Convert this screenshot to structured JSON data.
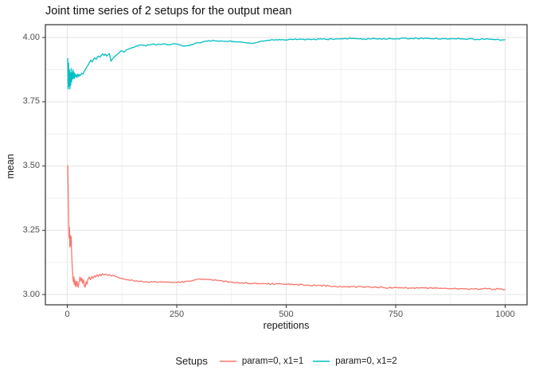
{
  "style": {
    "background": "#ffffff",
    "grid_major": "#e4e4e4",
    "grid_minor": "#f0f0f0",
    "panel_border": "#2f2f2f",
    "tick_mark": "#333333",
    "tick_label_color": "#4d4d4d",
    "text_color": "#1a1a1a"
  },
  "chart_data": {
    "type": "line",
    "title": "Joint time series of 2 setups for the output mean",
    "xlabel": "repetitions",
    "ylabel": "mean",
    "xlim": [
      -50,
      1050
    ],
    "ylim": [
      2.96,
      4.05
    ],
    "grid": true,
    "xticks": {
      "values": [
        0,
        250,
        500,
        750,
        1000
      ],
      "labels": [
        "0",
        "250",
        "500",
        "750",
        "1000"
      ]
    },
    "yticks": {
      "values": [
        3.0,
        3.25,
        3.5,
        3.75,
        4.0
      ],
      "labels": [
        "3.00",
        "3.25",
        "3.50",
        "3.75",
        "4.00"
      ]
    },
    "xminor": [
      125,
      375,
      625,
      875
    ],
    "yminor": [
      3.125,
      3.375,
      3.625,
      3.875
    ],
    "legend": {
      "title": "Setups",
      "position": "bottom"
    },
    "series": [
      {
        "name": "param=0, x1=1",
        "color": "#F8766D",
        "jitter": 0.0028,
        "points": [
          [
            1,
            3.503
          ],
          [
            2,
            3.42
          ],
          [
            3,
            3.31
          ],
          [
            4,
            3.22
          ],
          [
            5,
            3.26
          ],
          [
            6,
            3.185
          ],
          [
            7,
            3.23
          ],
          [
            8,
            3.19
          ],
          [
            9,
            3.225
          ],
          [
            10,
            3.16
          ],
          [
            11,
            3.12
          ],
          [
            12,
            3.09
          ],
          [
            13,
            3.065
          ],
          [
            14,
            3.05
          ],
          [
            15,
            3.068
          ],
          [
            16,
            3.04
          ],
          [
            17,
            3.058
          ],
          [
            18,
            3.035
          ],
          [
            19,
            3.05
          ],
          [
            20,
            3.03
          ],
          [
            22,
            3.052
          ],
          [
            24,
            3.034
          ],
          [
            25,
            3.028
          ],
          [
            27,
            3.048
          ],
          [
            29,
            3.068
          ],
          [
            31,
            3.052
          ],
          [
            33,
            3.064
          ],
          [
            35,
            3.044
          ],
          [
            37,
            3.058
          ],
          [
            39,
            3.032
          ],
          [
            41,
            3.029
          ],
          [
            43,
            3.05
          ],
          [
            45,
            3.04
          ],
          [
            47,
            3.058
          ],
          [
            50,
            3.068
          ],
          [
            53,
            3.058
          ],
          [
            56,
            3.07
          ],
          [
            59,
            3.063
          ],
          [
            62,
            3.073
          ],
          [
            65,
            3.068
          ],
          [
            68,
            3.077
          ],
          [
            71,
            3.07
          ],
          [
            74,
            3.079
          ],
          [
            77,
            3.073
          ],
          [
            80,
            3.081
          ],
          [
            84,
            3.076
          ],
          [
            88,
            3.08
          ],
          [
            92,
            3.074
          ],
          [
            96,
            3.078
          ],
          [
            100,
            3.072
          ],
          [
            105,
            3.075
          ],
          [
            110,
            3.07
          ],
          [
            115,
            3.067
          ],
          [
            120,
            3.064
          ],
          [
            125,
            3.061
          ],
          [
            130,
            3.059
          ],
          [
            140,
            3.057
          ],
          [
            150,
            3.055
          ],
          [
            160,
            3.053
          ],
          [
            170,
            3.052
          ],
          [
            180,
            3.05
          ],
          [
            190,
            3.049
          ],
          [
            200,
            3.05
          ],
          [
            215,
            3.048
          ],
          [
            230,
            3.049
          ],
          [
            245,
            3.047
          ],
          [
            260,
            3.048
          ],
          [
            275,
            3.052
          ],
          [
            290,
            3.056
          ],
          [
            305,
            3.059
          ],
          [
            315,
            3.06
          ],
          [
            325,
            3.058
          ],
          [
            340,
            3.055
          ],
          [
            355,
            3.052
          ],
          [
            370,
            3.049
          ],
          [
            385,
            3.047
          ],
          [
            400,
            3.045
          ],
          [
            425,
            3.043
          ],
          [
            450,
            3.042
          ],
          [
            475,
            3.041
          ],
          [
            500,
            3.041
          ],
          [
            525,
            3.039
          ],
          [
            550,
            3.037
          ],
          [
            575,
            3.035
          ],
          [
            600,
            3.033
          ],
          [
            625,
            3.031
          ],
          [
            650,
            3.03
          ],
          [
            675,
            3.029
          ],
          [
            700,
            3.028
          ],
          [
            725,
            3.027
          ],
          [
            750,
            3.027
          ],
          [
            775,
            3.026
          ],
          [
            800,
            3.025
          ],
          [
            825,
            3.025
          ],
          [
            850,
            3.024
          ],
          [
            875,
            3.023
          ],
          [
            900,
            3.023
          ],
          [
            925,
            3.022
          ],
          [
            950,
            3.022
          ],
          [
            975,
            3.021
          ],
          [
            1000,
            3.021
          ]
        ]
      },
      {
        "name": "param=0, x1=2",
        "color": "#00BFC4",
        "jitter": 0.0024,
        "points": [
          [
            1,
            3.92
          ],
          [
            2,
            3.8
          ],
          [
            3,
            3.9
          ],
          [
            4,
            3.81
          ],
          [
            5,
            3.875
          ],
          [
            6,
            3.8
          ],
          [
            7,
            3.862
          ],
          [
            8,
            3.815
          ],
          [
            9,
            3.88
          ],
          [
            10,
            3.828
          ],
          [
            11,
            3.862
          ],
          [
            12,
            3.838
          ],
          [
            13,
            3.874
          ],
          [
            14,
            3.842
          ],
          [
            15,
            3.866
          ],
          [
            16,
            3.84
          ],
          [
            17,
            3.86
          ],
          [
            18,
            3.846
          ],
          [
            20,
            3.856
          ],
          [
            22,
            3.844
          ],
          [
            24,
            3.858
          ],
          [
            26,
            3.848
          ],
          [
            28,
            3.856
          ],
          [
            30,
            3.852
          ],
          [
            33,
            3.861
          ],
          [
            36,
            3.858
          ],
          [
            39,
            3.87
          ],
          [
            42,
            3.877
          ],
          [
            45,
            3.887
          ],
          [
            48,
            3.894
          ],
          [
            51,
            3.904
          ],
          [
            54,
            3.912
          ],
          [
            57,
            3.905
          ],
          [
            60,
            3.915
          ],
          [
            63,
            3.921
          ],
          [
            66,
            3.915
          ],
          [
            69,
            3.923
          ],
          [
            72,
            3.928
          ],
          [
            75,
            3.924
          ],
          [
            78,
            3.931
          ],
          [
            81,
            3.937
          ],
          [
            84,
            3.93
          ],
          [
            87,
            3.936
          ],
          [
            90,
            3.928
          ],
          [
            93,
            3.933
          ],
          [
            96,
            3.938
          ],
          [
            100,
            3.908
          ],
          [
            104,
            3.919
          ],
          [
            108,
            3.926
          ],
          [
            112,
            3.931
          ],
          [
            116,
            3.937
          ],
          [
            120,
            3.943
          ],
          [
            125,
            3.948
          ],
          [
            130,
            3.944
          ],
          [
            136,
            3.953
          ],
          [
            142,
            3.957
          ],
          [
            148,
            3.961
          ],
          [
            155,
            3.964
          ],
          [
            162,
            3.967
          ],
          [
            170,
            3.971
          ],
          [
            178,
            3.968
          ],
          [
            186,
            3.971
          ],
          [
            194,
            3.974
          ],
          [
            202,
            3.971
          ],
          [
            210,
            3.973
          ],
          [
            220,
            3.975
          ],
          [
            230,
            3.972
          ],
          [
            240,
            3.974
          ],
          [
            250,
            3.974
          ],
          [
            258,
            3.971
          ],
          [
            266,
            3.967
          ],
          [
            274,
            3.968
          ],
          [
            282,
            3.972
          ],
          [
            290,
            3.976
          ],
          [
            300,
            3.98
          ],
          [
            310,
            3.983
          ],
          [
            320,
            3.986
          ],
          [
            330,
            3.988
          ],
          [
            340,
            3.986
          ],
          [
            350,
            3.987
          ],
          [
            360,
            3.985
          ],
          [
            370,
            3.986
          ],
          [
            380,
            3.985
          ],
          [
            390,
            3.983
          ],
          [
            400,
            3.981
          ],
          [
            410,
            3.979
          ],
          [
            420,
            3.978
          ],
          [
            430,
            3.98
          ],
          [
            440,
            3.984
          ],
          [
            450,
            3.987
          ],
          [
            460,
            3.989
          ],
          [
            470,
            3.991
          ],
          [
            480,
            3.99
          ],
          [
            490,
            3.992
          ],
          [
            500,
            3.991
          ],
          [
            515,
            3.992
          ],
          [
            530,
            3.993
          ],
          [
            545,
            3.992
          ],
          [
            560,
            3.993
          ],
          [
            575,
            3.994
          ],
          [
            590,
            3.993
          ],
          [
            605,
            3.994
          ],
          [
            620,
            3.995
          ],
          [
            635,
            3.997
          ],
          [
            650,
            3.996
          ],
          [
            665,
            3.995
          ],
          [
            680,
            3.994
          ],
          [
            695,
            3.995
          ],
          [
            710,
            3.994
          ],
          [
            725,
            3.995
          ],
          [
            740,
            3.996
          ],
          [
            755,
            3.995
          ],
          [
            770,
            3.997
          ],
          [
            785,
            3.997
          ],
          [
            800,
            3.996
          ],
          [
            815,
            3.996
          ],
          [
            830,
            3.995
          ],
          [
            845,
            3.996
          ],
          [
            860,
            3.995
          ],
          [
            875,
            3.994
          ],
          [
            890,
            3.995
          ],
          [
            905,
            3.994
          ],
          [
            920,
            3.995
          ],
          [
            935,
            3.993
          ],
          [
            950,
            3.994
          ],
          [
            965,
            3.993
          ],
          [
            980,
            3.992
          ],
          [
            1000,
            3.992
          ]
        ]
      }
    ]
  }
}
